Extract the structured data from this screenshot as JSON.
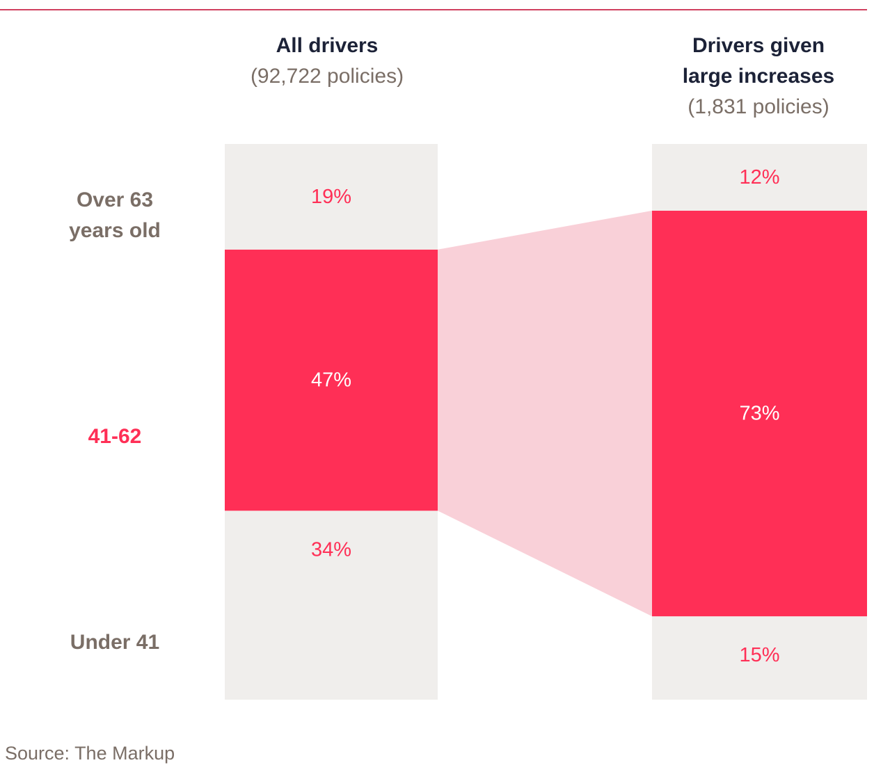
{
  "chart_data": {
    "type": "bar",
    "subtype": "stacked-100-percent",
    "orientation": "vertical",
    "categories": [
      {
        "title": "All drivers",
        "subtitle": "(92,722 policies)"
      },
      {
        "title": "Drivers given large increases",
        "subtitle": "(1,831 policies)"
      }
    ],
    "series": [
      {
        "name": "Under 41",
        "values": [
          34,
          15
        ],
        "labels": [
          "34%",
          "15%"
        ]
      },
      {
        "name": "41-62",
        "values": [
          47,
          73
        ],
        "labels": [
          "47%",
          "73%"
        ]
      },
      {
        "name": "Over 63 years old",
        "values": [
          19,
          12
        ],
        "labels": [
          "19%",
          "12%"
        ]
      }
    ],
    "highlight_series": "41-62",
    "stack_order": "bottom-to-top",
    "legend": "row labels on left",
    "grid": false,
    "colors": {
      "highlight": "#ff2f56",
      "highlight_connector": "#f9d0d8",
      "muted_fill": "#f0eeec",
      "label_text": "#7a6e66",
      "title_text": "#1c2237",
      "rule": "#d0405f"
    }
  },
  "source": "Source: The Markup"
}
